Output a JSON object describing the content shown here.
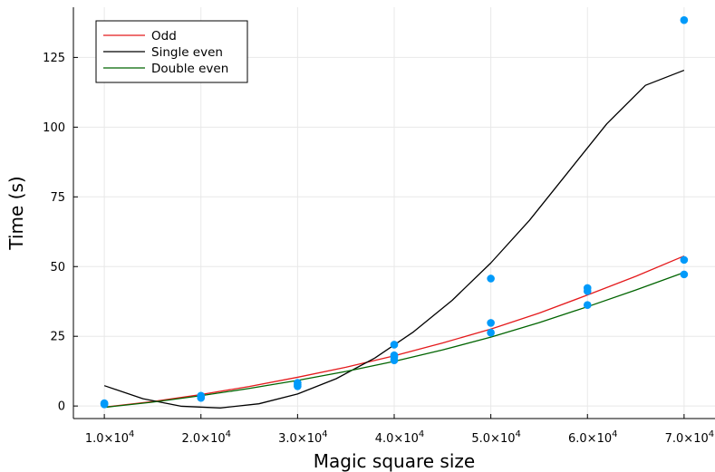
{
  "chart_data": {
    "type": "scatter",
    "title": "",
    "xlabel": "Magic square size",
    "ylabel": "Time (s)",
    "xlim": [
      6800,
      73200
    ],
    "ylim": [
      -4.5,
      143
    ],
    "grid": true,
    "legend_position": "top-left",
    "x_ticks": [
      {
        "value": 10000,
        "label": "1.0×10",
        "exp": "4"
      },
      {
        "value": 20000,
        "label": "2.0×10",
        "exp": "4"
      },
      {
        "value": 30000,
        "label": "3.0×10",
        "exp": "4"
      },
      {
        "value": 40000,
        "label": "4.0×10",
        "exp": "4"
      },
      {
        "value": 50000,
        "label": "5.0×10",
        "exp": "4"
      },
      {
        "value": 60000,
        "label": "6.0×10",
        "exp": "4"
      },
      {
        "value": 70000,
        "label": "7.0×10",
        "exp": "4"
      }
    ],
    "y_ticks": [
      {
        "value": 0,
        "label": "0"
      },
      {
        "value": 25,
        "label": "25"
      },
      {
        "value": 50,
        "label": "50"
      },
      {
        "value": 75,
        "label": "75"
      },
      {
        "value": 100,
        "label": "100"
      },
      {
        "value": 125,
        "label": "125"
      }
    ],
    "points": {
      "color": "#009AFA",
      "x": [
        10000,
        10000,
        10000,
        20000,
        20000,
        20000,
        30000,
        30000,
        30000,
        40000,
        40000,
        40000,
        40000,
        50000,
        50000,
        50000,
        60000,
        60000,
        60000,
        70000,
        70000,
        70000
      ],
      "y": [
        0.6,
        0.8,
        1.0,
        2.9,
        3.4,
        3.7,
        7.1,
        7.6,
        8.3,
        16.4,
        17.6,
        18.2,
        22.0,
        26.3,
        29.8,
        45.7,
        36.2,
        41.2,
        42.3,
        47.2,
        52.4,
        138.4
      ]
    },
    "series": [
      {
        "name": "Odd",
        "color": "#E41A1C",
        "x": [
          10000,
          15000,
          20000,
          25000,
          30000,
          35000,
          40000,
          45000,
          50000,
          55000,
          60000,
          65000,
          70000
        ],
        "y": [
          -0.4,
          1.6,
          4.1,
          7.0,
          10.3,
          13.9,
          18.0,
          22.6,
          27.6,
          33.3,
          39.8,
          46.5,
          53.8
        ]
      },
      {
        "name": "Single even",
        "color": "#000000",
        "x": [
          10000,
          14000,
          18000,
          22000,
          26000,
          30000,
          34000,
          38000,
          42000,
          46000,
          50000,
          54000,
          58000,
          62000,
          66000,
          70000
        ],
        "y": [
          7.3,
          2.6,
          -0.1,
          -0.7,
          0.8,
          4.3,
          9.8,
          17.2,
          26.6,
          37.9,
          51.3,
          66.6,
          83.9,
          101.2,
          115.0,
          120.4
        ]
      },
      {
        "name": "Double even",
        "color": "#006400",
        "x": [
          10000,
          15000,
          20000,
          25000,
          30000,
          35000,
          40000,
          45000,
          50000,
          55000,
          60000,
          65000,
          70000
        ],
        "y": [
          -0.5,
          1.4,
          3.7,
          6.3,
          9.2,
          12.4,
          16.0,
          20.1,
          24.7,
          29.9,
          35.6,
          41.6,
          47.9
        ]
      }
    ]
  }
}
